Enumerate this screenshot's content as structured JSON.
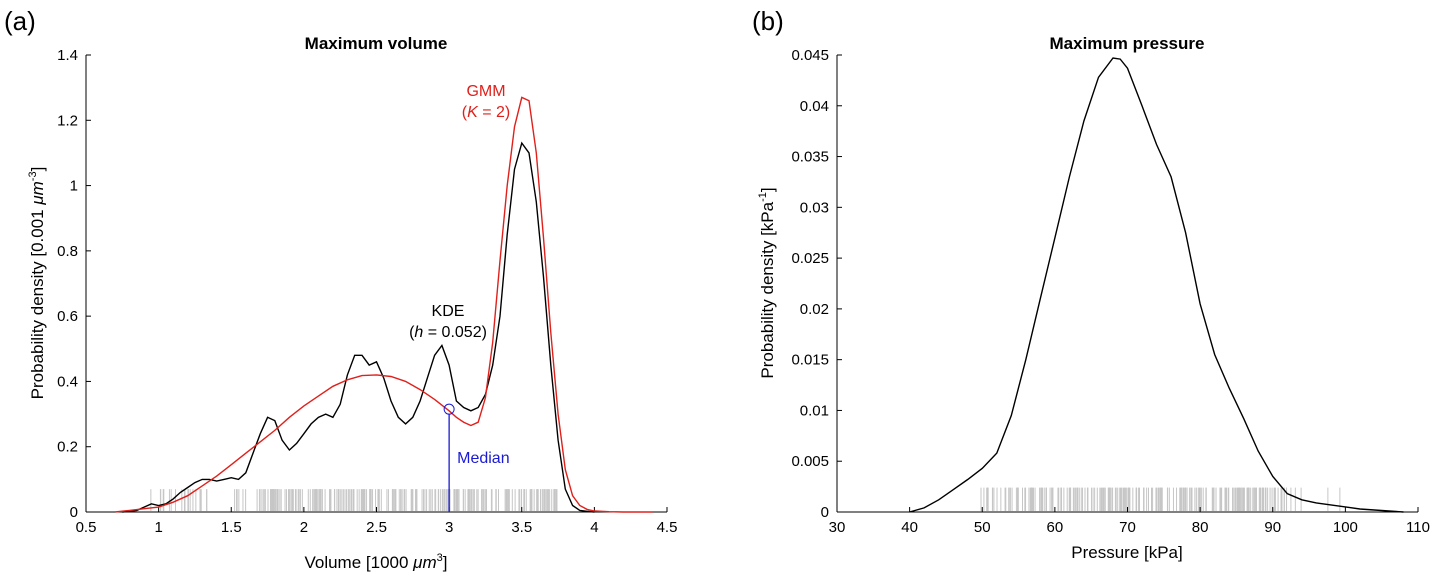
{
  "chart_data": [
    {
      "type": "line",
      "panel_label": "(a)",
      "title": "Maximum volume",
      "xlabel": "Volume [1000 μm³]",
      "xlabel_main": "Volume [1000 ",
      "xlabel_unit": "μm",
      "xlabel_sup": "3",
      "xlabel_end": "]",
      "ylabel": "Probability density [0.001 μm⁻³]",
      "ylabel_main": "Probability density [0.001 ",
      "ylabel_unit": "μm",
      "ylabel_sup": "-3",
      "ylabel_end": "]",
      "xlim": [
        0.5,
        4.5
      ],
      "ylim": [
        0,
        1.4
      ],
      "xticks": [
        "0.5",
        "1",
        "1.5",
        "2",
        "2.5",
        "3",
        "3.5",
        "4",
        "4.5"
      ],
      "yticks": [
        "0",
        "0.2",
        "0.4",
        "0.6",
        "0.8",
        "1",
        "1.2",
        "1.4"
      ],
      "series": [
        {
          "name": "KDE (h = 0.052)",
          "color": "#000000",
          "x": [
            0.75,
            0.85,
            0.9,
            0.95,
            1.0,
            1.05,
            1.1,
            1.15,
            1.2,
            1.25,
            1.3,
            1.35,
            1.4,
            1.45,
            1.5,
            1.55,
            1.6,
            1.65,
            1.7,
            1.75,
            1.8,
            1.85,
            1.9,
            1.95,
            2.0,
            2.05,
            2.1,
            2.15,
            2.2,
            2.25,
            2.3,
            2.35,
            2.4,
            2.45,
            2.5,
            2.55,
            2.6,
            2.65,
            2.7,
            2.75,
            2.8,
            2.85,
            2.9,
            2.95,
            3.0,
            3.05,
            3.1,
            3.15,
            3.2,
            3.25,
            3.3,
            3.35,
            3.4,
            3.45,
            3.5,
            3.55,
            3.6,
            3.65,
            3.7,
            3.75,
            3.8,
            3.85,
            3.9,
            3.95,
            4.0
          ],
          "y": [
            0,
            0.005,
            0.015,
            0.025,
            0.02,
            0.025,
            0.04,
            0.06,
            0.075,
            0.09,
            0.1,
            0.1,
            0.095,
            0.1,
            0.105,
            0.1,
            0.12,
            0.18,
            0.24,
            0.29,
            0.28,
            0.22,
            0.19,
            0.21,
            0.24,
            0.27,
            0.29,
            0.3,
            0.29,
            0.33,
            0.42,
            0.48,
            0.48,
            0.45,
            0.46,
            0.41,
            0.34,
            0.29,
            0.27,
            0.29,
            0.34,
            0.41,
            0.48,
            0.51,
            0.45,
            0.34,
            0.32,
            0.31,
            0.32,
            0.36,
            0.45,
            0.6,
            0.85,
            1.05,
            1.13,
            1.1,
            0.95,
            0.72,
            0.45,
            0.22,
            0.07,
            0.02,
            0.005,
            0.002,
            0
          ]
        },
        {
          "name": "GMM (K = 2)",
          "color": "#e0201b",
          "x": [
            0.7,
            0.8,
            0.9,
            1.0,
            1.1,
            1.2,
            1.3,
            1.4,
            1.5,
            1.6,
            1.7,
            1.8,
            1.9,
            2.0,
            2.1,
            2.2,
            2.3,
            2.4,
            2.5,
            2.6,
            2.7,
            2.8,
            2.9,
            3.0,
            3.05,
            3.1,
            3.15,
            3.2,
            3.25,
            3.3,
            3.35,
            3.4,
            3.45,
            3.5,
            3.55,
            3.6,
            3.65,
            3.7,
            3.75,
            3.8,
            3.85,
            3.9,
            3.95,
            4.0,
            4.1,
            4.2,
            4.3,
            4.4
          ],
          "y": [
            0,
            0.005,
            0.01,
            0.015,
            0.03,
            0.05,
            0.08,
            0.11,
            0.145,
            0.18,
            0.215,
            0.25,
            0.29,
            0.325,
            0.355,
            0.385,
            0.405,
            0.418,
            0.42,
            0.415,
            0.4,
            0.375,
            0.345,
            0.31,
            0.29,
            0.275,
            0.265,
            0.275,
            0.35,
            0.52,
            0.77,
            1.0,
            1.18,
            1.27,
            1.26,
            1.1,
            0.84,
            0.55,
            0.3,
            0.13,
            0.05,
            0.02,
            0.008,
            0.003,
            0.001,
            0,
            0,
            0
          ]
        }
      ],
      "annotations": {
        "kde_label": "KDE",
        "kde_param_var": "h",
        "kde_param_val": " = 0.052)",
        "gmm_label": "GMM",
        "gmm_param_var": "K",
        "gmm_param_val": " = 2)",
        "open_paren": "(",
        "median_label": "Median",
        "median_x": 3.0,
        "median_y": 0.315,
        "median_color": "#1a1ad4"
      },
      "rug": {
        "color": "#c6c6c6",
        "height": 0.07,
        "x_min": 0.93,
        "x_max": 3.78
      }
    },
    {
      "type": "line",
      "panel_label": "(b)",
      "title": "Maximum pressure",
      "xlabel": "Pressure [kPa]",
      "ylabel": "Probability density [kPa⁻¹]",
      "ylabel_main": "Probability density [kPa",
      "ylabel_sup": "-1",
      "ylabel_end": "]",
      "xlim": [
        30,
        110
      ],
      "ylim": [
        0,
        0.045
      ],
      "xticks": [
        "30",
        "40",
        "50",
        "60",
        "70",
        "80",
        "90",
        "100",
        "110"
      ],
      "yticks": [
        "0",
        "0.005",
        "0.01",
        "0.015",
        "0.02",
        "0.025",
        "0.03",
        "0.035",
        "0.04",
        "0.045"
      ],
      "series": [
        {
          "name": "KDE",
          "color": "#000000",
          "x": [
            40,
            42,
            44,
            46,
            48,
            50,
            52,
            54,
            56,
            58,
            60,
            62,
            64,
            66,
            68,
            69,
            70,
            72,
            74,
            76,
            78,
            80,
            82,
            84,
            86,
            88,
            90,
            92,
            94,
            96,
            98,
            100,
            102,
            104,
            106,
            108
          ],
          "y": [
            0,
            0.0004,
            0.0012,
            0.0022,
            0.0032,
            0.0043,
            0.0058,
            0.0095,
            0.015,
            0.021,
            0.027,
            0.033,
            0.0385,
            0.0428,
            0.0447,
            0.0446,
            0.0437,
            0.04,
            0.0362,
            0.033,
            0.0275,
            0.0205,
            0.0155,
            0.0122,
            0.0092,
            0.006,
            0.0035,
            0.0018,
            0.0012,
            0.0009,
            0.0007,
            0.0005,
            0.0003,
            0.0002,
            0.0001,
            0
          ]
        }
      ],
      "rug": {
        "color": "#c6c6c6",
        "height": 0.0024,
        "x_min": 46,
        "x_max": 102
      }
    }
  ]
}
